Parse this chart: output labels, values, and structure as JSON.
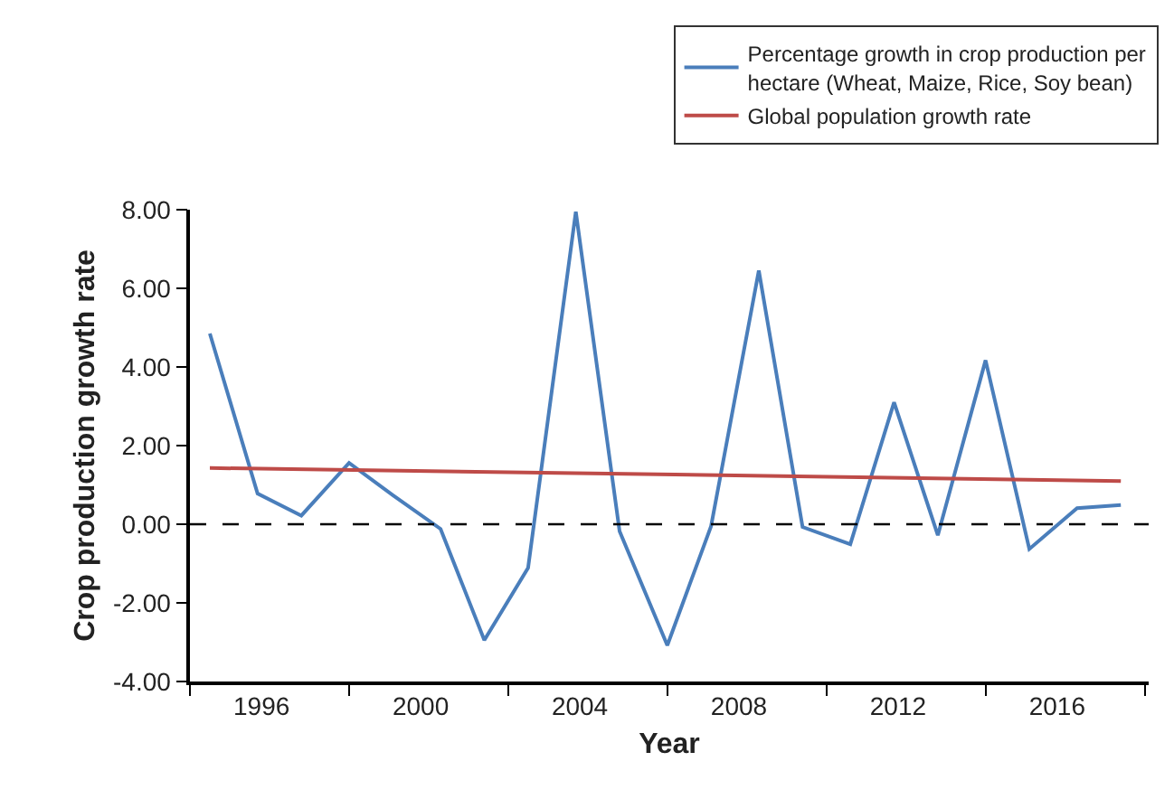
{
  "chart_data": {
    "type": "line",
    "xlabel": "Year",
    "ylabel": "Crop production growth rate",
    "xlim": [
      1994.2,
      2018.3
    ],
    "xticks": [
      {
        "value": 1994.2,
        "label": null
      },
      {
        "value": 1996,
        "label": "1996"
      },
      {
        "value": 1998.2,
        "label": null
      },
      {
        "value": 2000,
        "label": "2000"
      },
      {
        "value": 2002.2,
        "label": null
      },
      {
        "value": 2004,
        "label": "2004"
      },
      {
        "value": 2006.2,
        "label": null
      },
      {
        "value": 2008,
        "label": "2008"
      },
      {
        "value": 2010.2,
        "label": null
      },
      {
        "value": 2012,
        "label": "2012"
      },
      {
        "value": 2014.2,
        "label": null
      },
      {
        "value": 2016,
        "label": "2016"
      },
      {
        "value": 2018.2,
        "label": null
      }
    ],
    "ylim": [
      -4,
      8
    ],
    "yticks": [
      {
        "value": -4,
        "label": "-4.00"
      },
      {
        "value": -2,
        "label": "-2.00"
      },
      {
        "value": 0,
        "label": "0.00"
      },
      {
        "value": 2,
        "label": "2.00"
      },
      {
        "value": 4,
        "label": "4.00"
      },
      {
        "value": 6,
        "label": "6.00"
      },
      {
        "value": 8,
        "label": "8.00"
      }
    ],
    "series": [
      {
        "name": "Percentage growth in crop production per hectare (Wheat, Maize, Rice, Soy bean)",
        "color": "#4a7ebb",
        "x": [
          1994.7,
          1995.9,
          1997.0,
          1998.2,
          1999.3,
          2000.5,
          2001.6,
          2002.7,
          2003.9,
          2005.0,
          2006.2,
          2007.3,
          2008.5,
          2009.6,
          2010.8,
          2011.9,
          2013.0,
          2014.2,
          2015.3,
          2016.5,
          2017.6
        ],
        "values": [
          4.85,
          0.78,
          0.22,
          1.56,
          0.74,
          -0.12,
          -2.95,
          -1.11,
          7.95,
          -0.18,
          -3.08,
          -0.05,
          6.45,
          -0.07,
          -0.51,
          3.1,
          -0.28,
          4.17,
          -0.63,
          0.41,
          0.49
        ]
      },
      {
        "name": "Global population growth rate",
        "color": "#be4b48",
        "x": [
          1994.7,
          2017.6
        ],
        "values": [
          1.43,
          1.1
        ]
      }
    ],
    "ref_lines": [
      {
        "axis": "y",
        "value": 0,
        "color": "#000000",
        "line_style": "dashed"
      }
    ],
    "legend": "top right",
    "marker": "none",
    "line_style": "solid"
  }
}
